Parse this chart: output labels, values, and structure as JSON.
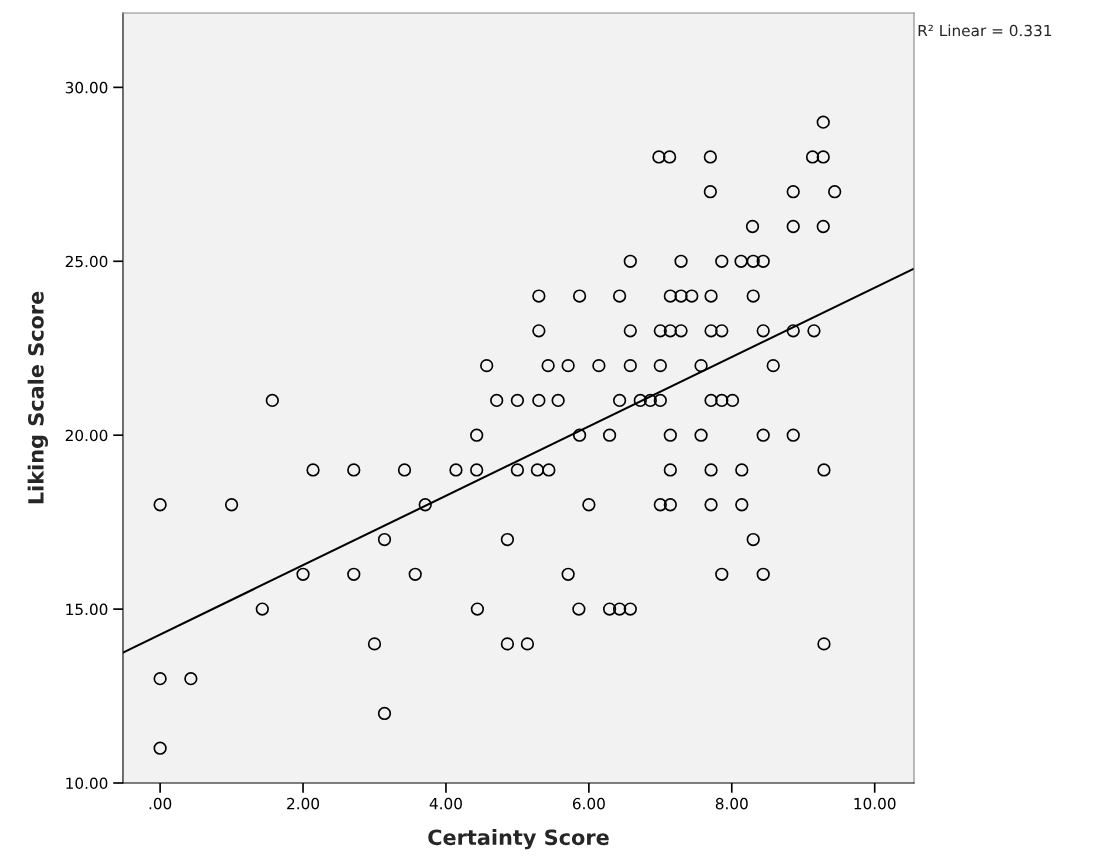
{
  "chart_data": {
    "type": "scatter",
    "xlabel": "Certainty Score",
    "ylabel": "Liking Scale Score",
    "annotations": [
      "R² Linear = 0.331"
    ],
    "xlim": [
      -0.52,
      10.55
    ],
    "ylim": [
      10,
      32.14
    ],
    "xticks": [
      {
        "value": 0,
        "label": ".00"
      },
      {
        "value": 2,
        "label": "2.00"
      },
      {
        "value": 4,
        "label": "4.00"
      },
      {
        "value": 6,
        "label": "6.00"
      },
      {
        "value": 8,
        "label": "8.00"
      },
      {
        "value": 10,
        "label": "10.00"
      }
    ],
    "yticks": [
      {
        "value": 10,
        "label": "10.00"
      },
      {
        "value": 15,
        "label": "15.00"
      },
      {
        "value": 20,
        "label": "20.00"
      },
      {
        "value": 25,
        "label": "25.00"
      },
      {
        "value": 30,
        "label": "30.00"
      }
    ],
    "grid": false,
    "legend": false,
    "series": [
      {
        "marker": "circle",
        "color": "#000000",
        "x": [
          9.28,
          6.98,
          7.13,
          7.7,
          9.13,
          9.28,
          7.7,
          8.86,
          9.44,
          8.29,
          8.86,
          9.28,
          6.58,
          7.29,
          7.86,
          8.13,
          8.3,
          8.44,
          5.3,
          5.87,
          6.43,
          7.14,
          7.29,
          7.44,
          7.71,
          8.3,
          5.3,
          6.58,
          7.0,
          7.14,
          7.29,
          7.71,
          7.86,
          8.44,
          8.86,
          9.15,
          4.57,
          5.43,
          5.71,
          6.14,
          6.58,
          7.0,
          7.57,
          8.58,
          1.57,
          4.71,
          5.0,
          5.3,
          5.57,
          6.43,
          6.72,
          6.86,
          7.0,
          7.71,
          7.86,
          8.01,
          4.43,
          5.87,
          6.29,
          7.14,
          7.57,
          8.44,
          8.86,
          2.14,
          2.71,
          3.42,
          4.14,
          4.43,
          5.0,
          5.28,
          5.44,
          7.14,
          7.71,
          8.14,
          9.29,
          0.0,
          1.0,
          3.71,
          6.0,
          7.0,
          7.14,
          7.71,
          8.14,
          3.14,
          4.86,
          8.3,
          2.0,
          2.71,
          3.57,
          5.71,
          7.86,
          8.44,
          1.43,
          4.44,
          5.86,
          6.29,
          6.43,
          6.58,
          3.0,
          4.86,
          5.14,
          9.29,
          0.0,
          0.43,
          3.14,
          0.0
        ],
        "values": [
          29,
          28,
          28,
          28,
          28,
          28,
          27,
          27,
          27,
          26,
          26,
          26,
          25,
          25,
          25,
          25,
          25,
          25,
          24,
          24,
          24,
          24,
          24,
          24,
          24,
          24,
          23,
          23,
          23,
          23,
          23,
          23,
          23,
          23,
          23,
          23,
          22,
          22,
          22,
          22,
          22,
          22,
          22,
          22,
          21,
          21,
          21,
          21,
          21,
          21,
          21,
          21,
          21,
          21,
          21,
          21,
          20,
          20,
          20,
          20,
          20,
          20,
          20,
          19,
          19,
          19,
          19,
          19,
          19,
          19,
          19,
          19,
          19,
          19,
          19,
          18,
          18,
          18,
          18,
          18,
          18,
          18,
          18,
          17,
          17,
          17,
          16,
          16,
          16,
          16,
          16,
          16,
          15,
          15,
          15,
          15,
          15,
          15,
          14,
          14,
          14,
          14,
          13,
          13,
          12,
          11
        ]
      },
      {
        "type": "line",
        "color": "#000000",
        "line_style": "solid",
        "x": [
          -0.52,
          10.55
        ],
        "values": [
          13.75,
          24.79
        ]
      }
    ]
  }
}
